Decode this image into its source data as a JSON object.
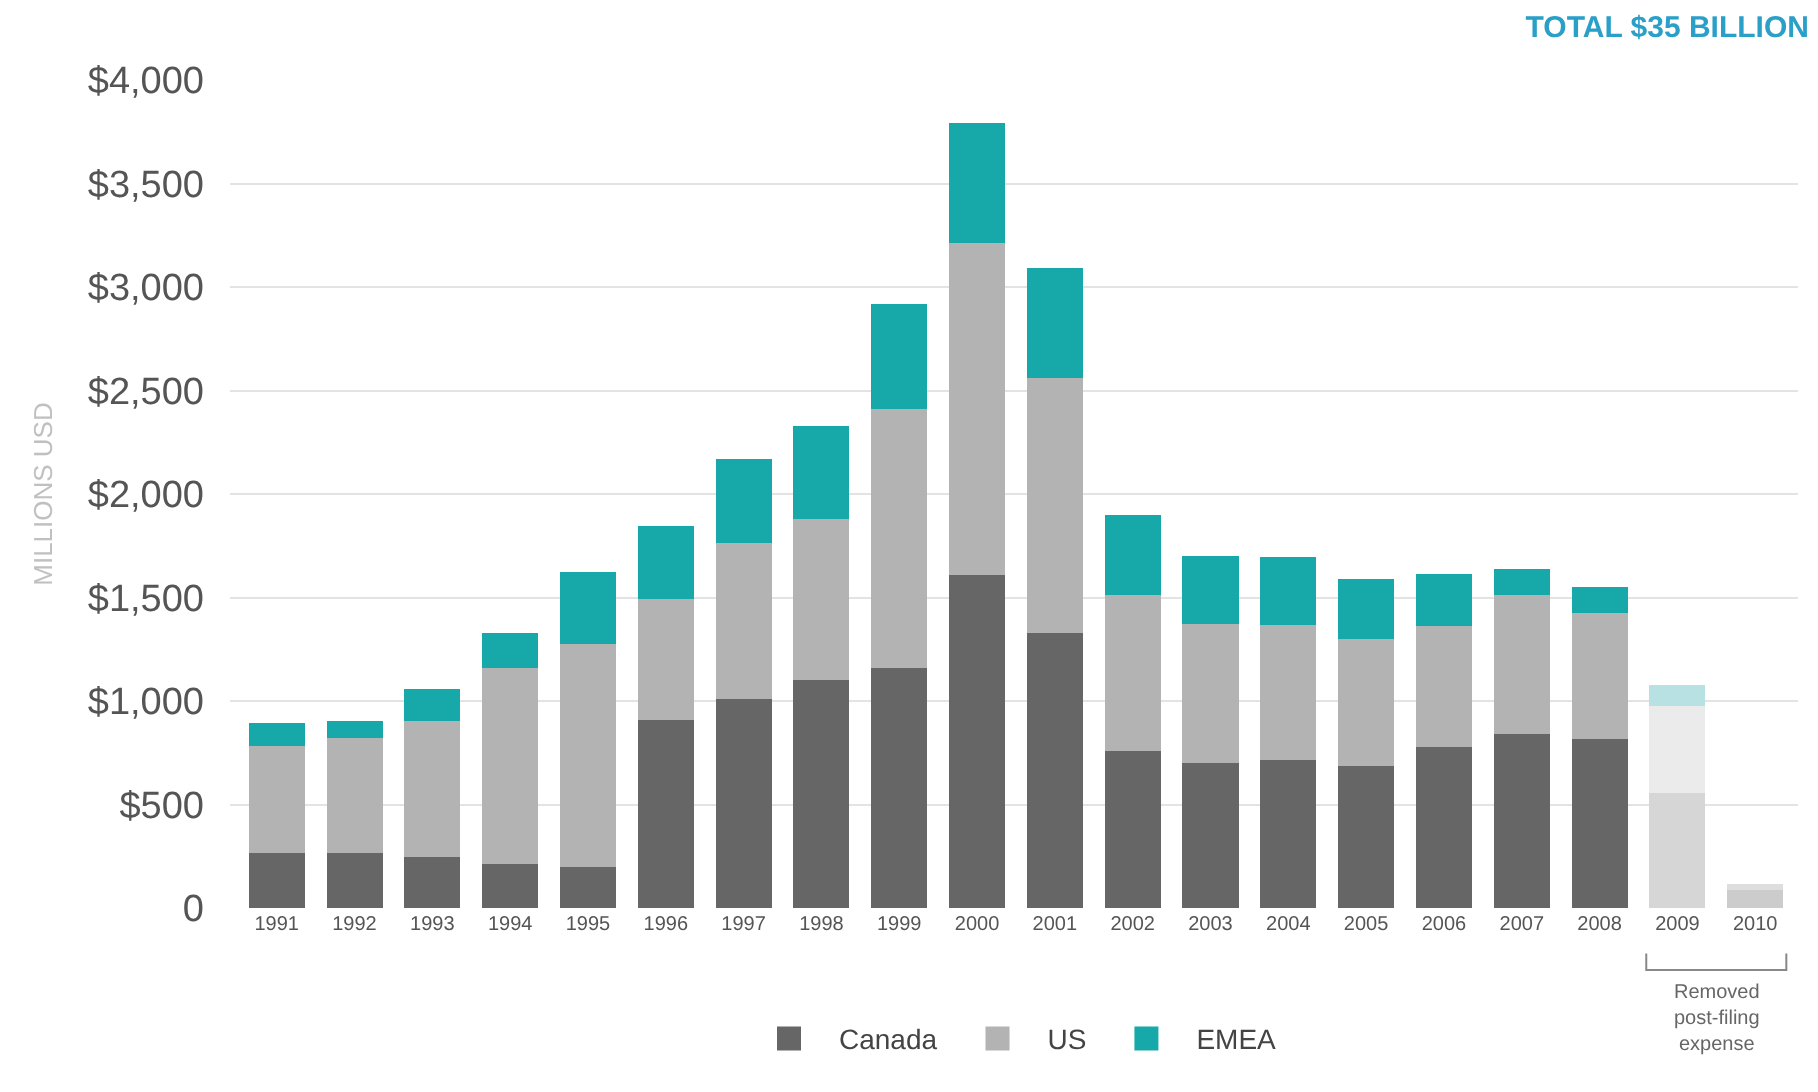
{
  "chart_data": {
    "type": "bar",
    "title": "TOTAL $35 BILLION",
    "ylabel": "MILLIONS USD",
    "categories": [
      "1991",
      "1992",
      "1993",
      "1994",
      "1995",
      "1996",
      "1997",
      "1998",
      "1999",
      "2000",
      "2001",
      "2002",
      "2003",
      "2004",
      "2005",
      "2006",
      "2007",
      "2008",
      "2009",
      "2010"
    ],
    "stacked": true,
    "series": [
      {
        "name": "Canada",
        "color": "#666666",
        "colors": [
          null,
          null,
          null,
          null,
          null,
          null,
          null,
          null,
          null,
          null,
          null,
          null,
          null,
          null,
          null,
          null,
          null,
          null,
          "#d6d6d6",
          "#cccccc"
        ],
        "values": [
          265,
          265,
          245,
          215,
          200,
          910,
          1010,
          1100,
          1160,
          1610,
          1330,
          760,
          700,
          715,
          685,
          780,
          840,
          815,
          555,
          85
        ]
      },
      {
        "name": "US",
        "color": "#b3b3b3",
        "colors": [
          null,
          null,
          null,
          null,
          null,
          null,
          null,
          null,
          null,
          null,
          null,
          null,
          null,
          null,
          null,
          null,
          null,
          null,
          "#ebebeb",
          "#dedede"
        ],
        "values": [
          520,
          555,
          660,
          945,
          1075,
          585,
          755,
          780,
          1250,
          1605,
          1230,
          750,
          670,
          650,
          615,
          580,
          670,
          610,
          420,
          30
        ]
      },
      {
        "name": "EMEA",
        "color": "#17a9a9",
        "colors": [
          null,
          null,
          null,
          null,
          null,
          null,
          null,
          null,
          null,
          null,
          null,
          null,
          null,
          null,
          null,
          null,
          null,
          null,
          "#b8e1e3",
          null
        ],
        "values": [
          110,
          85,
          155,
          170,
          350,
          350,
          405,
          450,
          510,
          575,
          530,
          390,
          330,
          330,
          290,
          255,
          130,
          125,
          100,
          0
        ]
      }
    ],
    "ylim": [
      0,
      4000
    ],
    "yticks": [
      0,
      {
        "value": 500,
        "label": "$500"
      },
      {
        "value": 1000,
        "label": "$1,000"
      },
      {
        "value": 1500,
        "label": "$1,500"
      },
      {
        "value": 2000,
        "label": "$2,000"
      },
      {
        "value": 2500,
        "label": "$2,500"
      },
      {
        "value": 3000,
        "label": "$3,000"
      },
      {
        "value": 3500,
        "label": "$3,500"
      },
      {
        "value": 4000,
        "label": "$4,000"
      }
    ],
    "grid": "y",
    "legend": "bottom",
    "annotations": [
      "Removed post-filing expense"
    ]
  }
}
